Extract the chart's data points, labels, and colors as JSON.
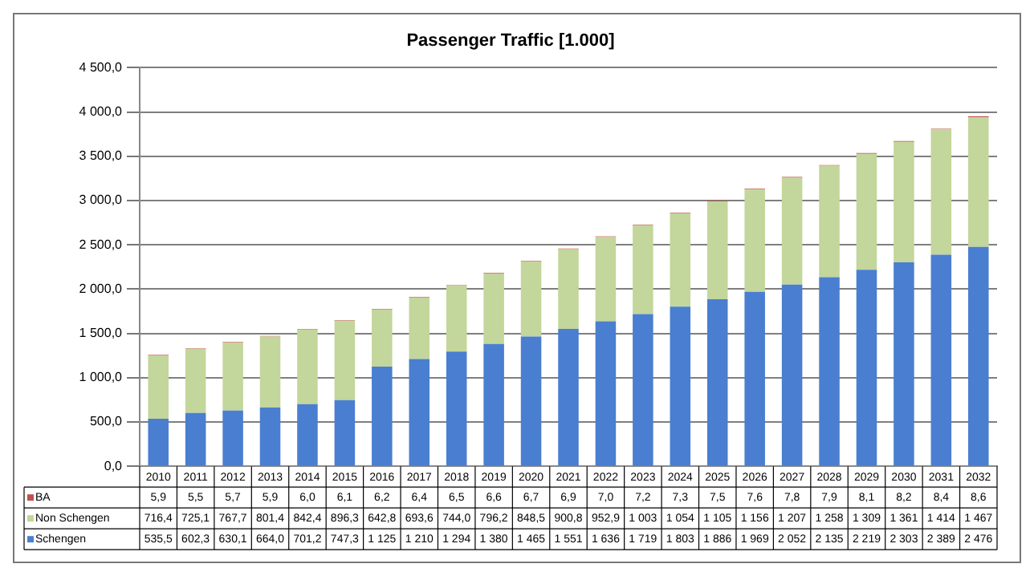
{
  "chart_data": {
    "type": "bar",
    "title": "Passenger Traffic [1.000]",
    "stacked": true,
    "grid": "y",
    "legend": "bottom",
    "data_labels": true,
    "categories": [
      "2010",
      "2011",
      "2012",
      "2013",
      "2014",
      "2015",
      "2016",
      "2017",
      "2018",
      "2019",
      "2020",
      "2021",
      "2022",
      "2023",
      "2024",
      "2025",
      "2026",
      "2027",
      "2028",
      "2029",
      "2030",
      "2031",
      "2032"
    ],
    "ylim": [
      0,
      4500
    ],
    "yticks": [
      {
        "value": 0,
        "label": "0,0"
      },
      {
        "value": 500,
        "label": "500,0"
      },
      {
        "value": 1000,
        "label": "1 000,0"
      },
      {
        "value": 1500,
        "label": "1 500,0"
      },
      {
        "value": 2000,
        "label": "2 000,0"
      },
      {
        "value": 2500,
        "label": "2 500,0"
      },
      {
        "value": 3000,
        "label": "3 000,0"
      },
      {
        "value": 3500,
        "label": "3 500,0"
      },
      {
        "value": 4000,
        "label": "4 000,0"
      },
      {
        "value": 4500,
        "label": "4 500,0"
      }
    ],
    "series": [
      {
        "name": "Schengen",
        "color": "#4a7ed0",
        "values": [
          535.5,
          602.3,
          630.1,
          664.0,
          701.2,
          747.3,
          1125,
          1210,
          1294,
          1380,
          1465,
          1551,
          1636,
          1719,
          1803,
          1886,
          1969,
          2052,
          2135,
          2219,
          2303,
          2389,
          2476
        ],
        "value_labels": [
          "535,5",
          "602,3",
          "630,1",
          "664,0",
          "701,2",
          "747,3",
          "1 125",
          "1 210",
          "1 294",
          "1 380",
          "1 465",
          "1 551",
          "1 636",
          "1 719",
          "1 803",
          "1 886",
          "1 969",
          "2 052",
          "2 135",
          "2 219",
          "2 303",
          "2 389",
          "2 476"
        ]
      },
      {
        "name": "Non Schengen",
        "color": "#c3d69b",
        "values": [
          716.4,
          725.1,
          767.7,
          801.4,
          842.4,
          896.3,
          642.8,
          693.6,
          744.0,
          796.2,
          848.5,
          900.8,
          952.9,
          1003,
          1054,
          1105,
          1156,
          1207,
          1258,
          1309,
          1361,
          1414,
          1467
        ],
        "value_labels": [
          "716,4",
          "725,1",
          "767,7",
          "801,4",
          "842,4",
          "896,3",
          "642,8",
          "693,6",
          "744,0",
          "796,2",
          "848,5",
          "900,8",
          "952,9",
          "1 003",
          "1 054",
          "1 105",
          "1 156",
          "1 207",
          "1 258",
          "1 309",
          "1 361",
          "1 414",
          "1 467"
        ]
      },
      {
        "name": "BA",
        "color": "#c0504d",
        "values": [
          5.9,
          5.5,
          5.7,
          5.9,
          6.0,
          6.1,
          6.2,
          6.4,
          6.5,
          6.6,
          6.7,
          6.9,
          7.0,
          7.2,
          7.3,
          7.5,
          7.6,
          7.8,
          7.9,
          8.1,
          8.2,
          8.4,
          8.6
        ],
        "value_labels": [
          "5,9",
          "5,5",
          "5,7",
          "5,9",
          "6,0",
          "6,1",
          "6,2",
          "6,4",
          "6,5",
          "6,6",
          "6,7",
          "6,9",
          "7,0",
          "7,2",
          "7,3",
          "7,5",
          "7,6",
          "7,8",
          "7,9",
          "8,1",
          "8,2",
          "8,4",
          "8,6"
        ]
      }
    ]
  }
}
